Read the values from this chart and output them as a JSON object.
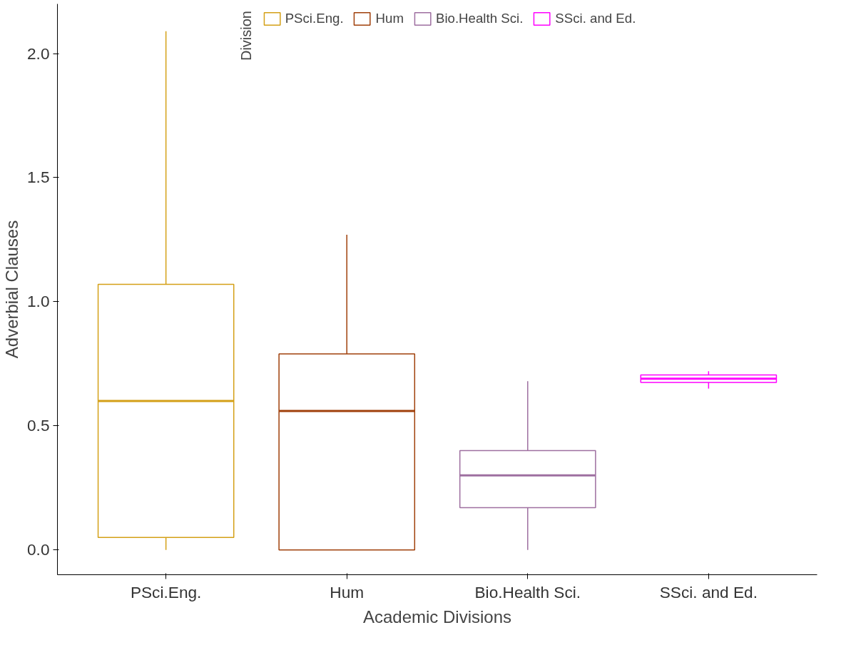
{
  "chart_data": {
    "type": "box",
    "xlabel": "Academic Divisions",
    "ylabel": "Adverbial Clauses",
    "legend_title": "Division",
    "legend": "top",
    "categories": [
      "PSci.Eng.",
      "Hum",
      "Bio.Health Sci.",
      "SSci. and Ed."
    ],
    "series": [
      {
        "name": "PSci.Eng.",
        "color": "#d4a017",
        "boxes": [
          {
            "low": 0.0,
            "q1": 0.05,
            "median": 0.6,
            "q3": 1.07,
            "high": 2.09
          },
          null,
          null,
          null
        ]
      },
      {
        "name": "Hum",
        "color": "#a0400b",
        "boxes": [
          null,
          {
            "low": 0.0,
            "q1": 0.0,
            "median": 0.56,
            "q3": 0.79,
            "high": 1.27
          },
          null,
          null
        ]
      },
      {
        "name": "Bio.Health Sci.",
        "color": "#9e6fa0",
        "boxes": [
          null,
          null,
          {
            "low": 0.0,
            "q1": 0.17,
            "median": 0.3,
            "q3": 0.4,
            "high": 0.68
          },
          null
        ]
      },
      {
        "name": "SSci. and Ed.",
        "color": "#ff00ff",
        "boxes": [
          null,
          null,
          null,
          {
            "low": 0.65,
            "q1": 0.675,
            "median": 0.69,
            "q3": 0.705,
            "high": 0.72
          }
        ]
      }
    ],
    "ylim": [
      -0.1,
      2.2
    ],
    "yticks": [
      {
        "value": 0,
        "label": "0.0"
      },
      0.5,
      {
        "value": 1,
        "label": "1.0"
      },
      1.5,
      {
        "value": 2,
        "label": "2.0"
      }
    ],
    "grid": false
  }
}
